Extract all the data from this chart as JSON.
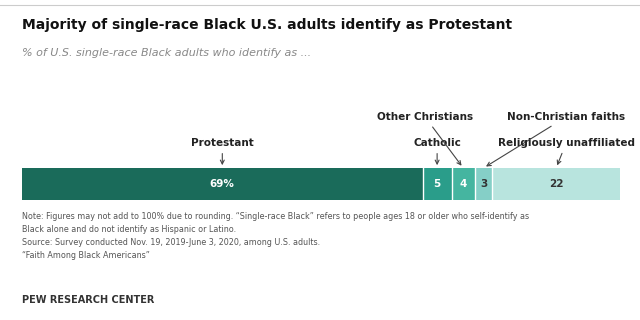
{
  "title": "Majority of single-race Black U.S. adults identify as Protestant",
  "subtitle": "% of U.S. single-race Black adults who identify as ...",
  "segments": [
    {
      "label": "Protestant",
      "value": 69,
      "color": "#1a6b5a",
      "text_color": "#ffffff",
      "display": "69%"
    },
    {
      "label": "Catholic",
      "value": 5,
      "color": "#2a9d8a",
      "text_color": "#ffffff",
      "display": "5"
    },
    {
      "label": "Other Christians",
      "value": 4,
      "color": "#45b5a0",
      "text_color": "#ffffff",
      "display": "4"
    },
    {
      "label": "Non-Christian faiths",
      "value": 3,
      "color": "#85cfc7",
      "text_color": "#333333",
      "display": "3"
    },
    {
      "label": "Religiously unaffiliated",
      "value": 22,
      "color": "#b8e4de",
      "text_color": "#333333",
      "display": "22"
    }
  ],
  "note_line1": "Note: Figures may not add to 100% due to rounding. “Single-race Black” refers to people ages 18 or older who self-identify as",
  "note_line2": "Black alone and do not identify as Hispanic or Latino.",
  "source_line1": "Source: Survey conducted Nov. 19, 2019-June 3, 2020, among U.S. adults.",
  "source_line2": "“Faith Among Black Americans”",
  "footer": "PEW RESEARCH CENTER",
  "background_color": "#ffffff"
}
